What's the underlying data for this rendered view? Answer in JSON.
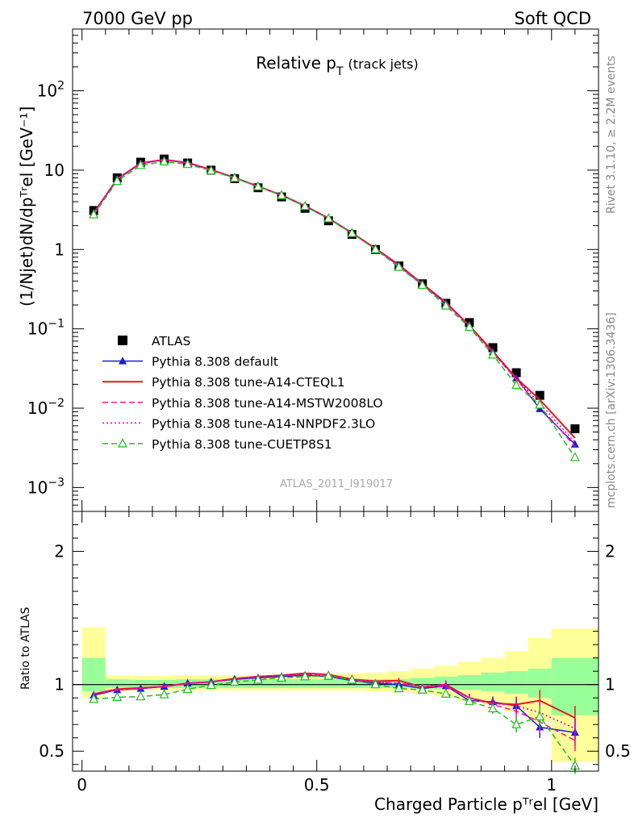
{
  "header": {
    "left": "7000 GeV pp",
    "right": "Soft QCD"
  },
  "title": {
    "main": "Relative p",
    "sub": "T",
    "suffix": "(track jets)"
  },
  "side_text": {
    "rivet": "Rivet 3.1.10, ≥ 2.2M events",
    "mcplots": "mcplots.cern.ch [arXiv:1306.3436]"
  },
  "watermark": "ATLAS_2011_I919017",
  "axis_labels": {
    "y_main": "(1/Njet)dN/dpᵀʳel [GeV⁻¹]",
    "y_ratio": "Ratio to ATLAS",
    "x": "Charged Particle pᵀʳel [GeV]"
  },
  "chart_data": [
    {
      "type": "scatter",
      "panel": "main",
      "yscale": "log",
      "xlim": [
        -0.02,
        1.1
      ],
      "ylim": [
        0.0005,
        600
      ],
      "yticks": [
        {
          "v": 0.001,
          "base": "10",
          "exp": "−3"
        },
        {
          "v": 0.01,
          "base": "10",
          "exp": "−2"
        },
        {
          "v": 0.1,
          "base": "10",
          "exp": "−1"
        },
        {
          "v": 1,
          "base": "1",
          "exp": ""
        },
        {
          "v": 10,
          "base": "10",
          "exp": ""
        },
        {
          "v": 100,
          "base": "10",
          "exp": "2"
        }
      ],
      "x": [
        0.025,
        0.075,
        0.125,
        0.175,
        0.225,
        0.275,
        0.325,
        0.375,
        0.425,
        0.475,
        0.525,
        0.575,
        0.625,
        0.675,
        0.725,
        0.775,
        0.825,
        0.875,
        0.925,
        0.975,
        1.05
      ],
      "series": [
        {
          "name": "ATLAS",
          "color": "#000000",
          "style": "data",
          "values": [
            3.1,
            8.0,
            12.6,
            13.8,
            12.3,
            10.0,
            7.8,
            6.0,
            4.6,
            3.3,
            2.3,
            1.55,
            1.0,
            0.62,
            0.37,
            0.21,
            0.12,
            0.058,
            0.028,
            0.0145,
            0.0055
          ]
        },
        {
          "name": "Pythia 8.308 default",
          "color": "#1f1fd6",
          "style": "solid-triangle",
          "values": [
            2.85,
            7.65,
            12.1,
            13.45,
            12.3,
            10.05,
            8.0,
            6.2,
            4.8,
            3.5,
            2.45,
            1.6,
            1.02,
            0.62,
            0.36,
            0.21,
            0.11,
            0.051,
            0.024,
            0.0098,
            0.0035
          ]
        },
        {
          "name": "Pythia 8.308 tune-A14-CTEQL1",
          "color": "#e31a1c",
          "style": "solid",
          "values": [
            2.9,
            7.75,
            12.3,
            13.55,
            12.45,
            10.15,
            8.05,
            6.25,
            4.85,
            3.55,
            2.48,
            1.62,
            1.03,
            0.64,
            0.37,
            0.215,
            0.11,
            0.052,
            0.024,
            0.0128,
            0.0042
          ]
        },
        {
          "name": "Pythia 8.308 tune-A14-MSTW2008LO",
          "color": "#ff1493",
          "style": "dashed",
          "values": [
            2.85,
            7.7,
            12.2,
            13.5,
            12.4,
            10.1,
            8.05,
            6.25,
            4.85,
            3.55,
            2.47,
            1.61,
            1.02,
            0.63,
            0.365,
            0.21,
            0.108,
            0.05,
            0.023,
            0.0105,
            0.0033
          ]
        },
        {
          "name": "Pythia 8.308 tune-A14-NNPDF2.3LO",
          "color": "#d400d4",
          "style": "dotted",
          "values": [
            2.9,
            7.7,
            12.2,
            13.5,
            12.4,
            10.1,
            8.05,
            6.25,
            4.85,
            3.55,
            2.47,
            1.61,
            1.02,
            0.625,
            0.365,
            0.21,
            0.108,
            0.05,
            0.0235,
            0.0115,
            0.0037
          ]
        },
        {
          "name": "Pythia 8.308 tune-CUETP8S1",
          "color": "#22bb22",
          "style": "dashed-open-triangle",
          "values": [
            2.75,
            7.25,
            11.5,
            12.75,
            11.85,
            9.85,
            7.95,
            6.2,
            4.8,
            3.5,
            2.45,
            1.6,
            1.0,
            0.6,
            0.355,
            0.195,
            0.105,
            0.047,
            0.0195,
            0.011,
            0.0024
          ]
        }
      ]
    },
    {
      "type": "line",
      "panel": "ratio",
      "xlim": [
        -0.02,
        1.1
      ],
      "ylim": [
        0.35,
        2.3
      ],
      "yticks": [
        0.5,
        1,
        2
      ],
      "xticks": [
        0,
        0.5,
        1
      ],
      "bands": {
        "edges": [
          0.0,
          0.05,
          0.1,
          0.15,
          0.2,
          0.25,
          0.3,
          0.35,
          0.4,
          0.45,
          0.5,
          0.55,
          0.6,
          0.65,
          0.7,
          0.75,
          0.8,
          0.85,
          0.9,
          0.95,
          1.0,
          1.1
        ],
        "green": [
          [
            0.95,
            1.2
          ],
          [
            0.975,
            1.04
          ],
          [
            0.975,
            1.035
          ],
          [
            0.975,
            1.035
          ],
          [
            0.975,
            1.04
          ],
          [
            0.975,
            1.04
          ],
          [
            0.975,
            1.04
          ],
          [
            0.975,
            1.04
          ],
          [
            0.975,
            1.04
          ],
          [
            0.975,
            1.04
          ],
          [
            0.975,
            1.04
          ],
          [
            0.975,
            1.04
          ],
          [
            0.975,
            1.04
          ],
          [
            0.975,
            1.04
          ],
          [
            0.97,
            1.05
          ],
          [
            0.965,
            1.06
          ],
          [
            0.96,
            1.07
          ],
          [
            0.95,
            1.09
          ],
          [
            0.93,
            1.1
          ],
          [
            0.9,
            1.12
          ],
          [
            0.77,
            1.2
          ]
        ],
        "yellow": [
          [
            0.9,
            1.43
          ],
          [
            0.95,
            1.07
          ],
          [
            0.955,
            1.065
          ],
          [
            0.955,
            1.065
          ],
          [
            0.955,
            1.07
          ],
          [
            0.955,
            1.07
          ],
          [
            0.955,
            1.07
          ],
          [
            0.955,
            1.07
          ],
          [
            0.955,
            1.075
          ],
          [
            0.955,
            1.075
          ],
          [
            0.955,
            1.08
          ],
          [
            0.955,
            1.085
          ],
          [
            0.95,
            1.09
          ],
          [
            0.945,
            1.1
          ],
          [
            0.93,
            1.12
          ],
          [
            0.91,
            1.14
          ],
          [
            0.88,
            1.17
          ],
          [
            0.85,
            1.2
          ],
          [
            0.8,
            1.25
          ],
          [
            0.72,
            1.35
          ],
          [
            0.42,
            1.42
          ]
        ]
      },
      "reference": 1,
      "x": [
        0.025,
        0.075,
        0.125,
        0.175,
        0.225,
        0.275,
        0.325,
        0.375,
        0.425,
        0.475,
        0.525,
        0.575,
        0.625,
        0.675,
        0.725,
        0.775,
        0.825,
        0.875,
        0.925,
        0.975,
        1.05
      ],
      "series": [
        {
          "name": "Pythia 8.308 default",
          "color": "#1f1fd6",
          "style": "solid-triangle",
          "values": [
            0.92,
            0.96,
            0.97,
            0.985,
            1.01,
            1.02,
            1.04,
            1.05,
            1.06,
            1.07,
            1.06,
            1.03,
            1.01,
            1.0,
            0.97,
            0.99,
            0.88,
            0.87,
            0.84,
            0.68,
            0.64
          ],
          "errors": [
            0.01,
            0.01,
            0.01,
            0.01,
            0.01,
            0.01,
            0.01,
            0.01,
            0.01,
            0.01,
            0.01,
            0.01,
            0.01,
            0.02,
            0.02,
            0.03,
            0.03,
            0.04,
            0.06,
            0.08,
            0.1
          ]
        },
        {
          "name": "Pythia 8.308 tune-A14-CTEQL1",
          "color": "#e31a1c",
          "style": "solid",
          "values": [
            0.93,
            0.965,
            0.975,
            0.985,
            1.01,
            1.02,
            1.045,
            1.06,
            1.07,
            1.085,
            1.075,
            1.04,
            1.025,
            1.03,
            0.98,
            1.0,
            0.9,
            0.86,
            0.85,
            0.88,
            0.75
          ],
          "errors": [
            0.01,
            0.01,
            0.01,
            0.01,
            0.01,
            0.01,
            0.01,
            0.01,
            0.01,
            0.01,
            0.01,
            0.01,
            0.01,
            0.02,
            0.02,
            0.03,
            0.03,
            0.04,
            0.06,
            0.08,
            0.09
          ]
        },
        {
          "name": "Pythia 8.308 tune-A14-MSTW2008LO",
          "color": "#ff1493",
          "style": "dashed",
          "values": [
            0.93,
            0.96,
            0.97,
            0.985,
            1.01,
            1.02,
            1.045,
            1.06,
            1.07,
            1.075,
            1.07,
            1.035,
            1.02,
            1.01,
            0.985,
            0.985,
            0.9,
            0.85,
            0.8,
            0.72,
            0.58
          ],
          "errors": [
            0.01,
            0.01,
            0.01,
            0.01,
            0.01,
            0.01,
            0.01,
            0.01,
            0.01,
            0.01,
            0.01,
            0.01,
            0.01,
            0.02,
            0.02,
            0.03,
            0.03,
            0.04,
            0.06,
            0.08,
            0.08
          ]
        },
        {
          "name": "Pythia 8.308 tune-A14-NNPDF2.3LO",
          "color": "#d400d4",
          "style": "dotted",
          "values": [
            0.93,
            0.96,
            0.97,
            0.985,
            1.01,
            1.02,
            1.045,
            1.06,
            1.07,
            1.075,
            1.07,
            1.035,
            1.02,
            1.005,
            0.985,
            1.0,
            0.9,
            0.86,
            0.84,
            0.79,
            0.67
          ],
          "errors": [
            0.01,
            0.01,
            0.01,
            0.01,
            0.01,
            0.01,
            0.01,
            0.01,
            0.01,
            0.01,
            0.01,
            0.01,
            0.01,
            0.02,
            0.02,
            0.03,
            0.03,
            0.04,
            0.06,
            0.08,
            0.08
          ]
        },
        {
          "name": "Pythia 8.308 tune-CUETP8S1",
          "color": "#22bb22",
          "style": "dashed-open-triangle",
          "values": [
            0.89,
            0.905,
            0.91,
            0.925,
            0.965,
            0.995,
            1.02,
            1.035,
            1.05,
            1.06,
            1.065,
            1.035,
            1.0,
            0.97,
            0.96,
            0.93,
            0.875,
            0.82,
            0.7,
            0.76,
            0.39
          ],
          "errors": [
            0.01,
            0.01,
            0.01,
            0.01,
            0.01,
            0.01,
            0.01,
            0.01,
            0.01,
            0.01,
            0.01,
            0.01,
            0.01,
            0.02,
            0.02,
            0.03,
            0.03,
            0.04,
            0.06,
            0.08,
            0.06
          ]
        }
      ]
    }
  ]
}
